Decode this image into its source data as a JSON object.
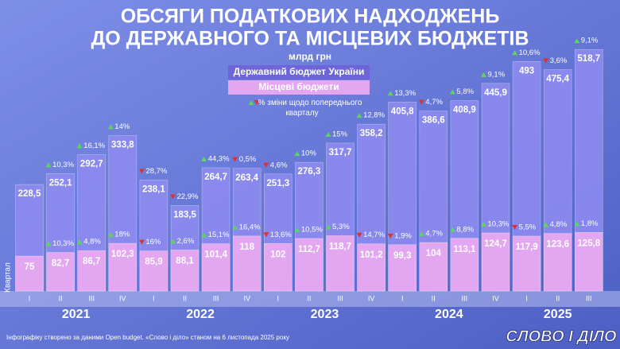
{
  "chart_data": {
    "type": "bar",
    "title": [
      "ОБСЯГИ ПОДАТКОВИХ НАДХОДЖЕНЬ",
      "ДО ДЕРЖАВНОГО ТА МІСЦЕВИХ БЮДЖЕТІВ"
    ],
    "subtitle": "млрд грн",
    "change_note": "% зміни щодо попереднього кварталу",
    "x_label": "Квартал",
    "footer": "Інфографіку створено за даними Open budget. «Слово і діло» станом на 6 листопада 2025 року",
    "logo": "СЛОВО І ДІЛО",
    "categories": [
      "I",
      "II",
      "III",
      "IV",
      "I",
      "II",
      "III",
      "IV",
      "I",
      "II",
      "III",
      "IV",
      "I",
      "II",
      "III",
      "IV",
      "I",
      "II",
      "III"
    ],
    "years": [
      "2021",
      "2022",
      "2023",
      "2024",
      "2025"
    ],
    "ylim": [
      0,
      560
    ],
    "series": [
      {
        "name": "Державний бюджет України",
        "color": "#8f8cf2",
        "values": [
          228.5,
          252.1,
          292.7,
          333.8,
          238.1,
          183.5,
          264.7,
          263.4,
          251.3,
          276.3,
          317.7,
          358.2,
          405.8,
          386.6,
          408.9,
          445.9,
          493,
          475.4,
          518.7
        ],
        "value_labels": [
          "228,5",
          "252,1",
          "292,7",
          "333,8",
          "238,1",
          "183,5",
          "264,7",
          "263,4",
          "251,3",
          "276,3",
          "317,7",
          "358,2",
          "405,8",
          "386,6",
          "408,9",
          "445,9",
          "493",
          "475,4",
          "518,7"
        ],
        "changes": [
          null,
          {
            "value": 10.3,
            "label": "10,3%"
          },
          {
            "value": 16.1,
            "label": "16,1%"
          },
          {
            "value": 14,
            "label": "14%"
          },
          {
            "value": -28.7,
            "label": "28,7%"
          },
          {
            "value": -22.9,
            "label": "22,9%"
          },
          {
            "value": 44.3,
            "label": "44,3%"
          },
          {
            "value": -0.5,
            "label": "0,5%"
          },
          {
            "value": -4.6,
            "label": "4,6%"
          },
          {
            "value": 10,
            "label": "10%"
          },
          {
            "value": 15,
            "label": "15%"
          },
          {
            "value": 12.8,
            "label": "12,8%"
          },
          {
            "value": 13.3,
            "label": "13,3%"
          },
          {
            "value": -4.7,
            "label": "4,7%"
          },
          {
            "value": 5.8,
            "label": "5,8%"
          },
          {
            "value": 9.1,
            "label": "9,1%"
          },
          {
            "value": 10.6,
            "label": "10,6%"
          },
          {
            "value": -3.6,
            "label": "3,6%"
          },
          {
            "value": 9.1,
            "label": "9,1%"
          }
        ]
      },
      {
        "name": "Місцеві бюджети",
        "color": "#e3a6f0",
        "values": [
          75,
          82.7,
          86.7,
          102.3,
          85.9,
          88.1,
          101.4,
          118,
          102,
          112.7,
          118.7,
          101.2,
          99.3,
          104,
          113.1,
          124.7,
          117.9,
          123.6,
          125.8
        ],
        "value_labels": [
          "75",
          "82,7",
          "86,7",
          "102,3",
          "85,9",
          "88,1",
          "101,4",
          "118",
          "102",
          "112,7",
          "118,7",
          "101,2",
          "99,3",
          "104",
          "113,1",
          "124,7",
          "117,9",
          "123,6",
          "125,8"
        ],
        "changes": [
          null,
          {
            "value": 10.3,
            "label": "10,3%"
          },
          {
            "value": 4.8,
            "label": "4,8%"
          },
          {
            "value": 18,
            "label": "18%"
          },
          {
            "value": -16,
            "label": "16%"
          },
          {
            "value": 2.6,
            "label": "2,6%"
          },
          {
            "value": 15.1,
            "label": "15,1%"
          },
          {
            "value": 16.4,
            "label": "16,4%"
          },
          {
            "value": -13.6,
            "label": "13,6%"
          },
          {
            "value": 10.5,
            "label": "10,5%"
          },
          {
            "value": 5.3,
            "label": "5,3%"
          },
          {
            "value": -14.7,
            "label": "14,7%"
          },
          {
            "value": -1.9,
            "label": "1,9%"
          },
          {
            "value": 4.7,
            "label": "4,7%"
          },
          {
            "value": 8.8,
            "label": "8,8%"
          },
          {
            "value": 10.3,
            "label": "10,3%"
          },
          {
            "value": -5.5,
            "label": "5,5%"
          },
          {
            "value": 4.8,
            "label": "4,8%"
          },
          {
            "value": 1.8,
            "label": "1,8%"
          }
        ]
      }
    ]
  }
}
